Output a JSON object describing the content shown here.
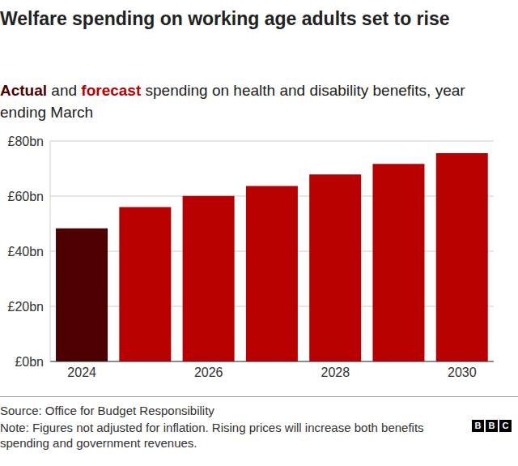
{
  "chart_data": {
    "type": "bar",
    "title": "Welfare spending on working age adults set to rise",
    "subtitle": [
      {
        "text": "Actual",
        "color": "#4d0000"
      },
      {
        "text": " and "
      },
      {
        "text": "forecast",
        "color": "#b80000"
      },
      {
        "text": " spending on health and disability benefits, year ending March"
      }
    ],
    "categories": [
      "2024",
      null,
      "2026",
      null,
      "2028",
      null,
      "2030"
    ],
    "values": [
      48.3,
      56,
      60.1,
      63.7,
      67.9,
      71.7,
      75.6
    ],
    "colors": [
      "#4d0000",
      "#b80000",
      "#b80000",
      "#b80000",
      "#b80000",
      "#b80000",
      "#b80000"
    ],
    "ylim": [
      0,
      80
    ],
    "yticks": [
      {
        "value": 0,
        "label": "£0bn"
      },
      {
        "value": 20,
        "label": "£20bn"
      },
      {
        "value": 40,
        "label": "£40bn"
      },
      {
        "value": 60,
        "label": "£60bn"
      },
      {
        "value": 80,
        "label": "£80bn"
      }
    ],
    "grid": true,
    "source": "Source: Office for Budget Responsibility",
    "note": "Note: Figures not adjusted for inflation. Rising prices will increase both benefits spending and government revenues.",
    "logo": "BBC"
  }
}
